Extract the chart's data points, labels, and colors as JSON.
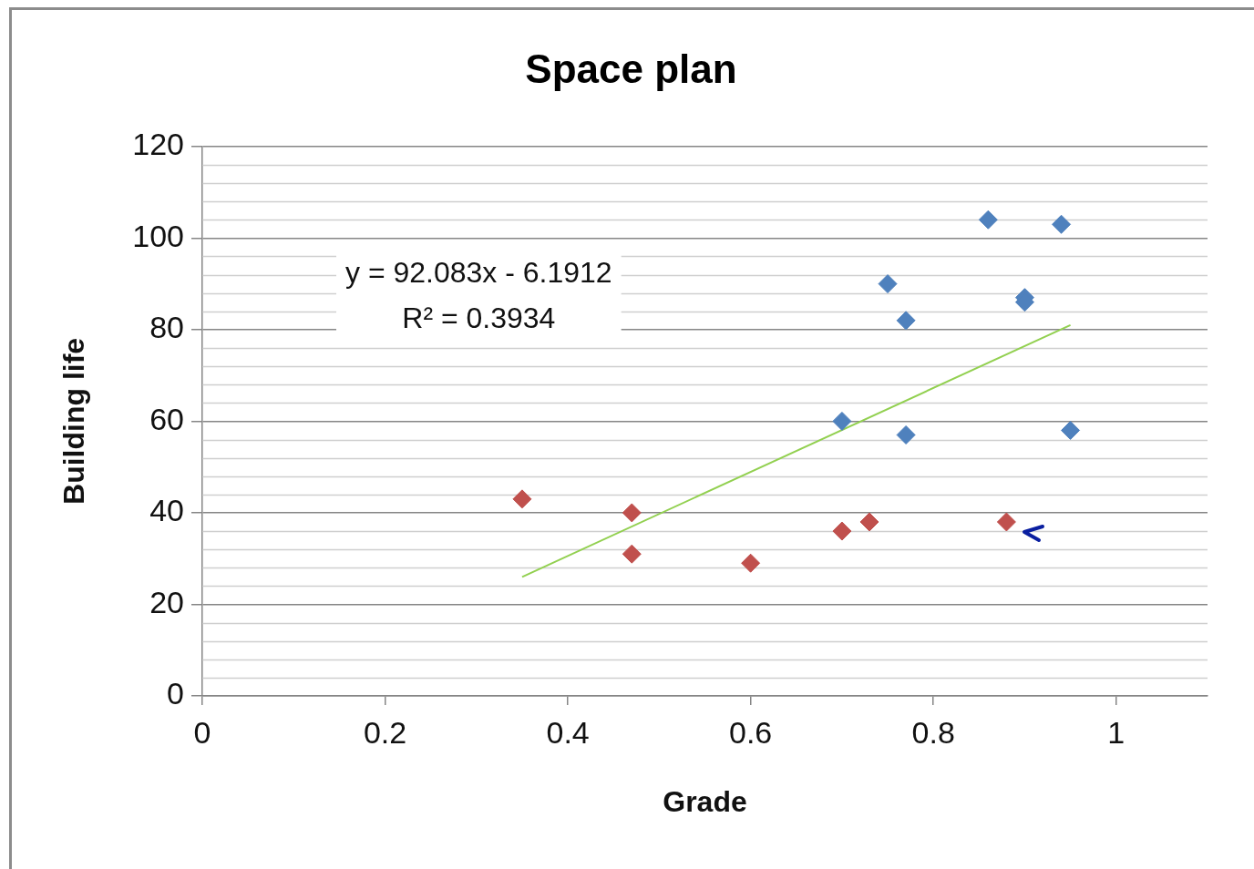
{
  "chart_data": {
    "type": "scatter",
    "title": "Space plan",
    "xlabel": "Grade",
    "ylabel": "Building life",
    "xlim": [
      0,
      1.1
    ],
    "xticks": [
      0,
      0.2,
      0.4,
      0.6,
      0.8,
      1
    ],
    "ylim": [
      0,
      120
    ],
    "yticks": [
      0,
      20,
      40,
      60,
      80,
      100,
      120
    ],
    "grid": "y",
    "legend": false,
    "marker": "diamond",
    "annotations": [
      "y = 92.083x - 6.1912",
      "R² = 0.3934"
    ],
    "series": [
      {
        "color": "#4f81bd",
        "x": [
          0.86,
          0.94,
          0.75,
          0.9,
          0.9,
          0.77,
          0.7,
          0.77,
          0.95
        ],
        "values": [
          104,
          103,
          90,
          87,
          86,
          82,
          60,
          57,
          58
        ]
      },
      {
        "color": "#c0504d",
        "x": [
          0.35,
          0.47,
          0.47,
          0.6,
          0.7,
          0.73,
          0.88
        ],
        "values": [
          43,
          40,
          31,
          29,
          36,
          38,
          38
        ]
      },
      {
        "type": "line",
        "marker": "none",
        "color": "#92d050",
        "x": [
          0.35,
          0.95
        ],
        "values": [
          26,
          81
        ]
      }
    ]
  }
}
